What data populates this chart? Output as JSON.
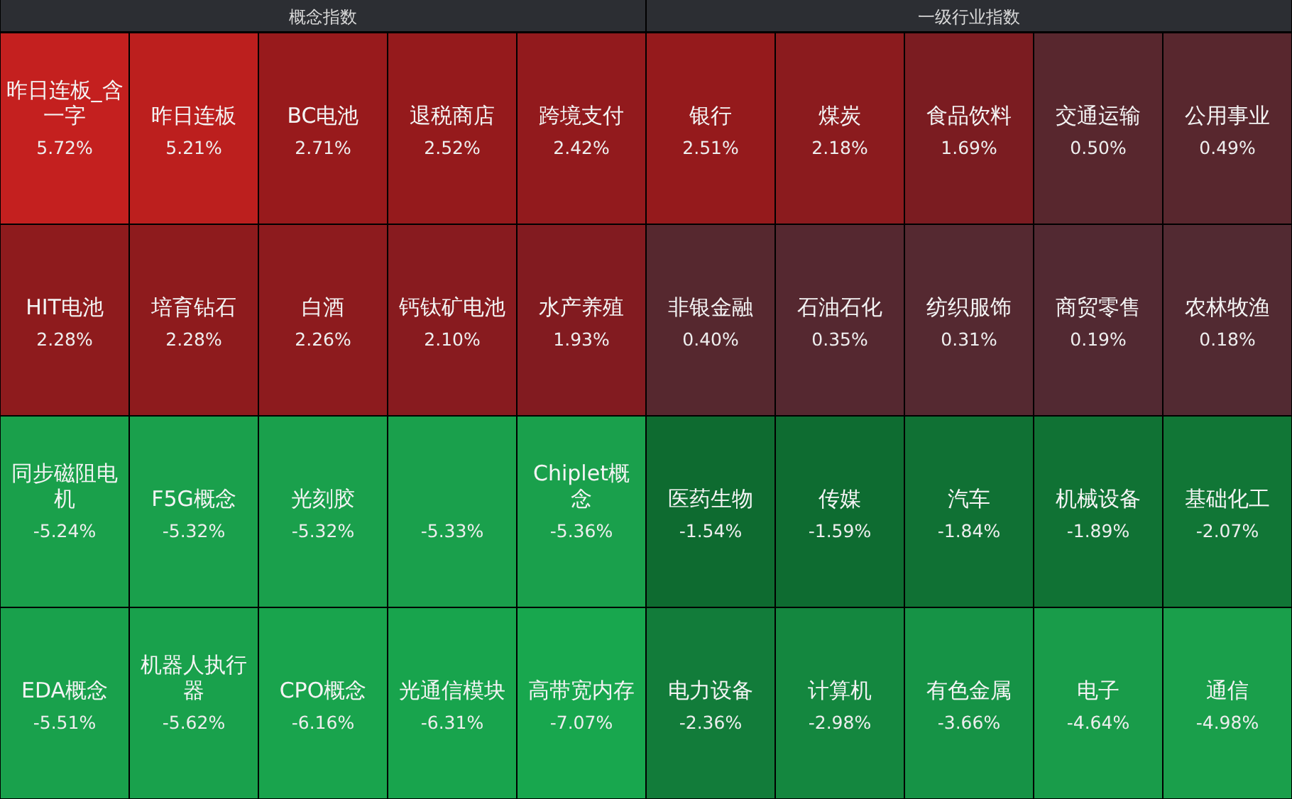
{
  "chart_data": [
    {
      "type": "other",
      "title": "概念指数",
      "categories": [
        "昨日连板_含一字",
        "昨日连板",
        "BC电池",
        "退税商店",
        "跨境支付",
        "HIT电池",
        "培育钻石",
        "白酒",
        "钙钛矿电池",
        "水产养殖",
        "同步磁阻电机",
        "F5G概念",
        "光刻胶",
        null,
        "Chiplet概念",
        "EDA概念",
        "机器人执行器",
        "CPO概念",
        "光通信模块",
        "高带宽内存"
      ],
      "values": [
        5.72,
        5.21,
        2.71,
        2.52,
        2.42,
        2.28,
        2.28,
        2.26,
        2.1,
        1.93,
        -5.24,
        -5.32,
        -5.32,
        -5.33,
        -5.36,
        -5.51,
        -5.62,
        -6.16,
        -6.31,
        -7.07
      ],
      "value_labels": [
        "5.72%",
        "5.21%",
        "2.71%",
        "2.52%",
        "2.42%",
        "2.28%",
        "2.28%",
        "2.26%",
        "2.10%",
        "1.93%",
        "-5.24%",
        "-5.32%",
        "-5.32%",
        "-5.33%",
        "-5.36%",
        "-5.51%",
        "-5.62%",
        "-6.16%",
        "-6.31%",
        "-7.07%"
      ]
    },
    {
      "type": "other",
      "title": "一级行业指数",
      "categories": [
        "银行",
        "煤炭",
        "食品饮料",
        "交通运输",
        "公用事业",
        "非银金融",
        "石油石化",
        "纺织服饰",
        "商贸零售",
        "农林牧渔",
        "医药生物",
        "传媒",
        "汽车",
        "机械设备",
        "基础化工",
        "电力设备",
        "计算机",
        "有色金属",
        "电子",
        "通信"
      ],
      "values": [
        2.51,
        2.18,
        1.69,
        0.5,
        0.49,
        0.4,
        0.35,
        0.31,
        0.19,
        0.18,
        -1.54,
        -1.59,
        -1.84,
        -1.89,
        -2.07,
        -2.36,
        -2.98,
        -3.66,
        -4.64,
        -4.98
      ],
      "value_labels": [
        "2.51%",
        "2.18%",
        "1.69%",
        "0.50%",
        "0.49%",
        "0.40%",
        "0.35%",
        "0.31%",
        "0.19%",
        "0.18%",
        "-1.54%",
        "-1.59%",
        "-1.84%",
        "-1.89%",
        "-2.07%",
        "-2.36%",
        "-2.98%",
        "-3.66%",
        "-4.64%",
        "-4.98%"
      ]
    }
  ]
}
